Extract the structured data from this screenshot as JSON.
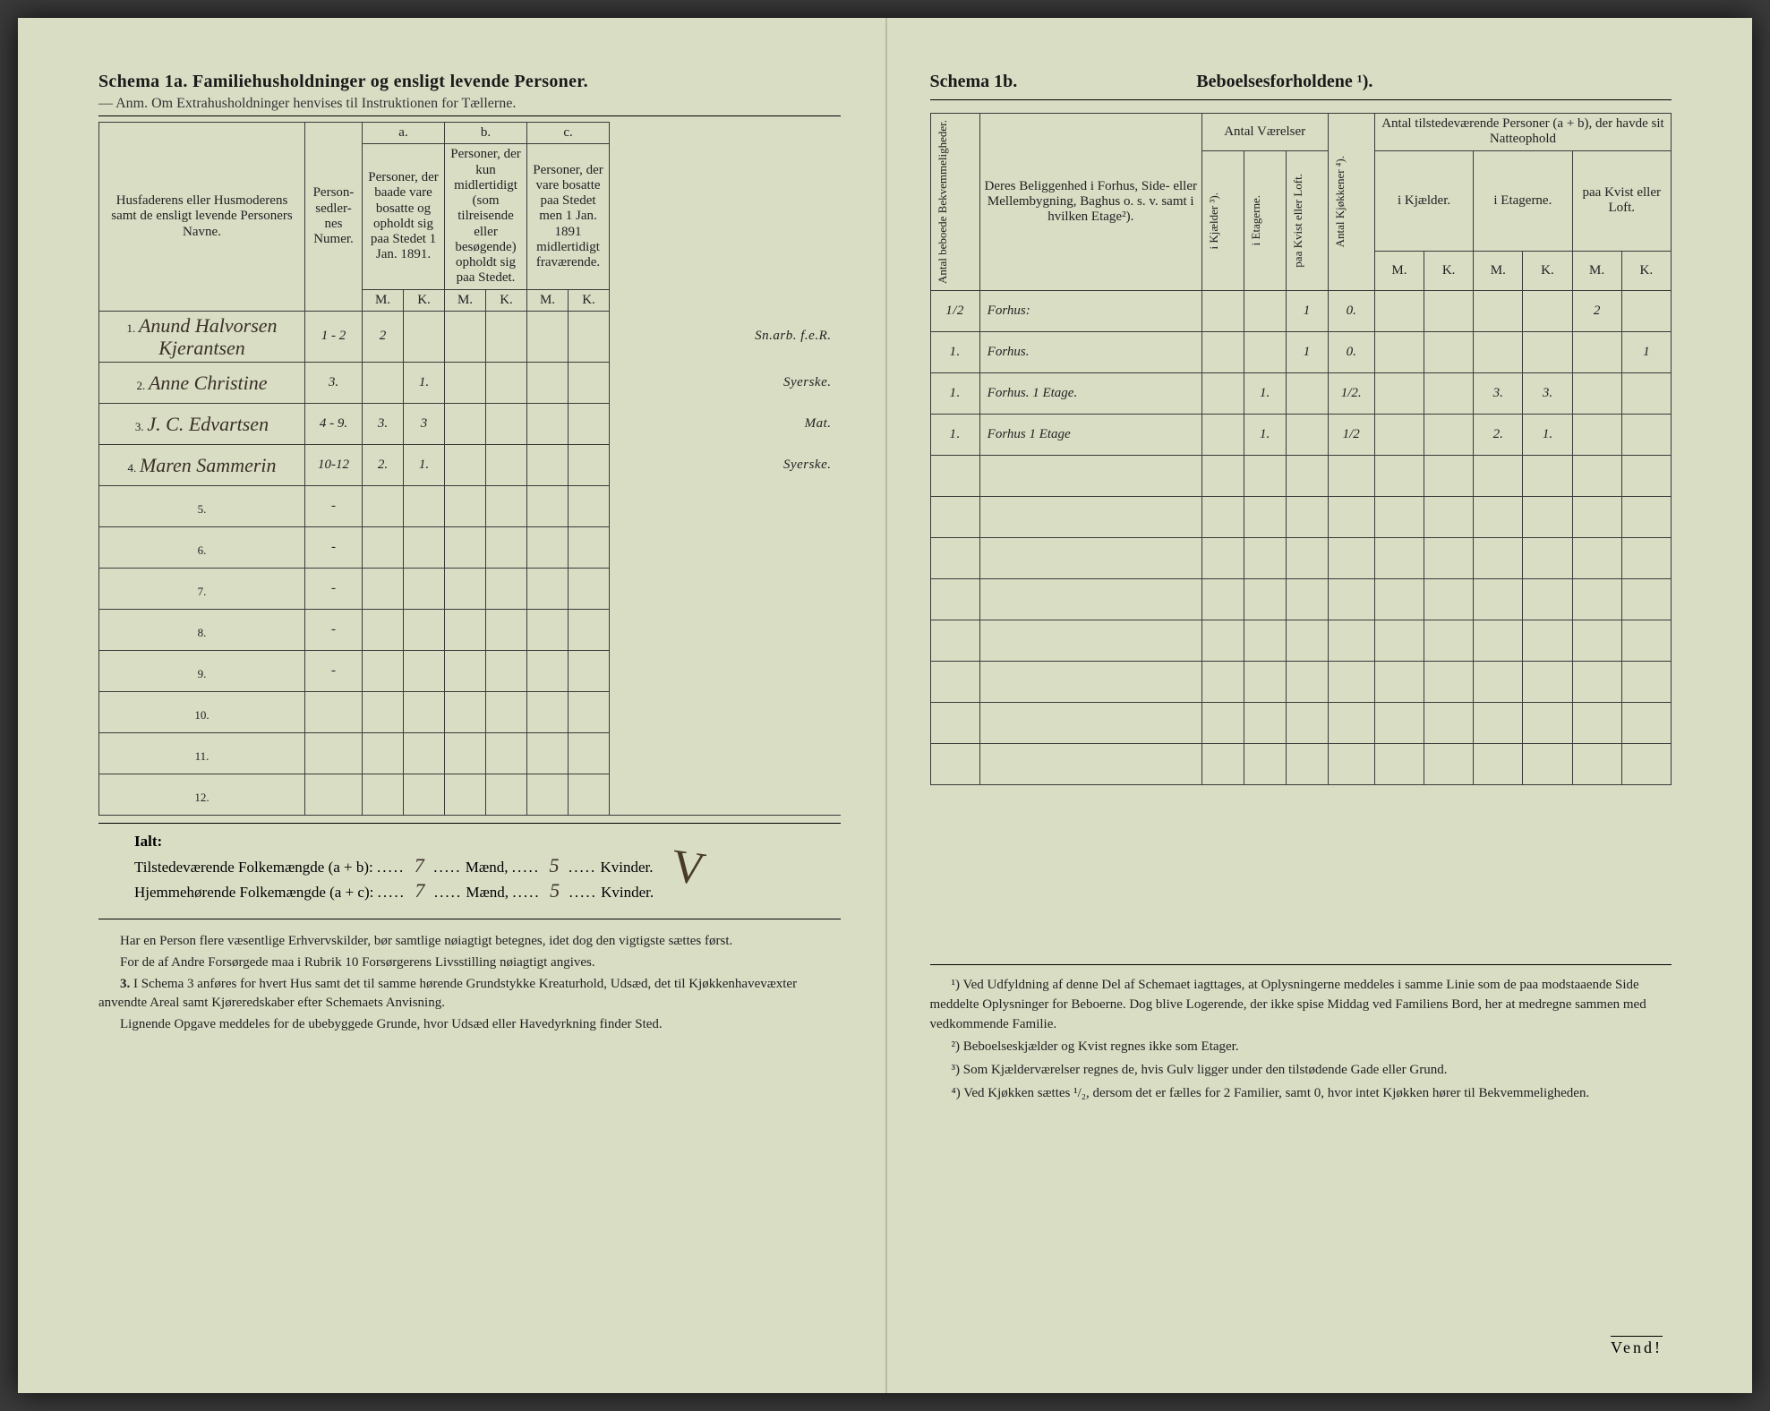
{
  "left": {
    "schema_title": "Schema 1a.  Familiehusholdninger og ensligt levende Personer.",
    "anm": "Anm. Om Extrahusholdninger henvises til Instruktionen for Tællerne.",
    "headers": {
      "name": "Husfaderens eller Husmoderens samt de ensligt levende Personers Navne.",
      "numer": "Person-sedler-nes Numer.",
      "a_label": "a.",
      "a_text": "Personer, der baade vare bosatte og opholdt sig paa Stedet 1 Jan. 1891.",
      "b_label": "b.",
      "b_text": "Personer, der kun midlertidigt (som tilreisende eller besøgende) opholdt sig paa Stedet.",
      "c_label": "c.",
      "c_text": "Personer, der vare bosatte paa Stedet men 1 Jan. 1891 midlertidigt fraværende.",
      "M": "M.",
      "K": "K."
    },
    "rows": [
      {
        "n": "1.",
        "name": "Anund Halvorsen Kjerantsen",
        "num": "1 - 2",
        "aM": "2",
        "aK": "",
        "bM": "",
        "bK": "",
        "cM": "",
        "cK": "",
        "occ": "Sn.arb. f.e.R."
      },
      {
        "n": "2.",
        "name": "Anne Christine",
        "num": "3.",
        "aM": "",
        "aK": "1.",
        "bM": "",
        "bK": "",
        "cM": "",
        "cK": "",
        "occ": "Syerske."
      },
      {
        "n": "3.",
        "name": "J. C. Edvartsen",
        "num": "4 - 9.",
        "aM": "3.",
        "aK": "3",
        "bM": "",
        "bK": "",
        "cM": "",
        "cK": "",
        "occ": "Mat."
      },
      {
        "n": "4.",
        "name": "Maren Sammerin",
        "num": "10-12",
        "aM": "2.",
        "aK": "1.",
        "bM": "",
        "bK": "",
        "cM": "",
        "cK": "",
        "occ": "Syerske."
      },
      {
        "n": "5.",
        "name": "",
        "num": "-",
        "aM": "",
        "aK": "",
        "bM": "",
        "bK": "",
        "cM": "",
        "cK": "",
        "occ": ""
      },
      {
        "n": "6.",
        "name": "",
        "num": "-",
        "aM": "",
        "aK": "",
        "bM": "",
        "bK": "",
        "cM": "",
        "cK": "",
        "occ": ""
      },
      {
        "n": "7.",
        "name": "",
        "num": "-",
        "aM": "",
        "aK": "",
        "bM": "",
        "bK": "",
        "cM": "",
        "cK": "",
        "occ": ""
      },
      {
        "n": "8.",
        "name": "",
        "num": "-",
        "aM": "",
        "aK": "",
        "bM": "",
        "bK": "",
        "cM": "",
        "cK": "",
        "occ": ""
      },
      {
        "n": "9.",
        "name": "",
        "num": "-",
        "aM": "",
        "aK": "",
        "bM": "",
        "bK": "",
        "cM": "",
        "cK": "",
        "occ": ""
      },
      {
        "n": "10.",
        "name": "",
        "num": "",
        "aM": "",
        "aK": "",
        "bM": "",
        "bK": "",
        "cM": "",
        "cK": "",
        "occ": ""
      },
      {
        "n": "11.",
        "name": "",
        "num": "",
        "aM": "",
        "aK": "",
        "bM": "",
        "bK": "",
        "cM": "",
        "cK": "",
        "occ": ""
      },
      {
        "n": "12.",
        "name": "",
        "num": "",
        "aM": "",
        "aK": "",
        "bM": "",
        "bK": "",
        "cM": "",
        "cK": "",
        "occ": ""
      }
    ],
    "summary": {
      "ialt": "Ialt:",
      "line1a": "Tilstedeværende Folkemængde (a + b): ",
      "line1_m": "7",
      "line1_mid": " Mænd, ",
      "line1_k": "5",
      "line1_end": " Kvinder.",
      "line2a": "Hjemmehørende Folkemængde (a + c): ",
      "line2_m": "7",
      "line2_k": "5"
    },
    "instructions": {
      "p1": "Har en Person flere væsentlige Erhvervskilder, bør samtlige nøiagtigt betegnes, idet dog den vigtigste sættes først.",
      "p2": "For de af Andre Forsørgede maa i Rubrik 10 Forsørgerens Livsstilling nøiagtigt angives.",
      "p3_num": "3.",
      "p3": "I Schema 3 anføres for hvert Hus samt det til samme hørende Grundstykke Kreaturhold, Udsæd, det til Kjøkkenhavevæxter anvendte Areal samt Kjøreredskaber efter Schemaets Anvisning.",
      "p4": "Lignende Opgave meddeles for de ubebyggede Grunde, hvor Udsæd eller Havedyrkning finder Sted."
    }
  },
  "right": {
    "schema_a": "Schema 1b.",
    "schema_b": "Beboelsesforholdene ¹).",
    "headers": {
      "antal_bek": "Antal beboede Bekvemmeligheder.",
      "belig": "Deres Beliggenhed i Forhus, Side- eller Mellembygning, Baghus o. s. v. samt i hvilken Etage²).",
      "antal_vaer": "Antal Værelser",
      "ik": "i Kjælder ³).",
      "ie": "i Etagerne.",
      "pk": "paa Kvist eller Loft.",
      "kjok": "Antal Kjøkkener ⁴).",
      "tilst": "Antal tilstedeværende Personer (a + b), der havde sit Natteophold",
      "ikj": "i Kjælder.",
      "iet": "i Etagerne.",
      "paakv": "paa Kvist eller Loft.",
      "M": "M.",
      "K": "K."
    },
    "rows": [
      {
        "bek": "1/2",
        "belig": "Forhus:",
        "ik": "",
        "ie": "",
        "pk": "1",
        "kj": "0.",
        "kjM": "",
        "kjK": "",
        "etM": "",
        "etK": "",
        "kvM": "2",
        "kvK": ""
      },
      {
        "bek": "1.",
        "belig": "Forhus.",
        "ik": "",
        "ie": "",
        "pk": "1",
        "kj": "0.",
        "kjM": "",
        "kjK": "",
        "etM": "",
        "etK": "",
        "kvM": "",
        "kvK": "1"
      },
      {
        "bek": "1.",
        "belig": "Forhus. 1 Etage.",
        "ik": "",
        "ie": "1.",
        "pk": "",
        "kj": "1/2.",
        "kjM": "",
        "kjK": "",
        "etM": "3.",
        "etK": "3.",
        "kvM": "",
        "kvK": ""
      },
      {
        "bek": "1.",
        "belig": "Forhus 1 Etage",
        "ik": "",
        "ie": "1.",
        "pk": "",
        "kj": "1/2",
        "kjM": "",
        "kjK": "",
        "etM": "2.",
        "etK": "1.",
        "kvM": "",
        "kvK": ""
      },
      {
        "bek": "",
        "belig": "",
        "ik": "",
        "ie": "",
        "pk": "",
        "kj": "",
        "kjM": "",
        "kjK": "",
        "etM": "",
        "etK": "",
        "kvM": "",
        "kvK": ""
      },
      {
        "bek": "",
        "belig": "",
        "ik": "",
        "ie": "",
        "pk": "",
        "kj": "",
        "kjM": "",
        "kjK": "",
        "etM": "",
        "etK": "",
        "kvM": "",
        "kvK": ""
      },
      {
        "bek": "",
        "belig": "",
        "ik": "",
        "ie": "",
        "pk": "",
        "kj": "",
        "kjM": "",
        "kjK": "",
        "etM": "",
        "etK": "",
        "kvM": "",
        "kvK": ""
      },
      {
        "bek": "",
        "belig": "",
        "ik": "",
        "ie": "",
        "pk": "",
        "kj": "",
        "kjM": "",
        "kjK": "",
        "etM": "",
        "etK": "",
        "kvM": "",
        "kvK": ""
      },
      {
        "bek": "",
        "belig": "",
        "ik": "",
        "ie": "",
        "pk": "",
        "kj": "",
        "kjM": "",
        "kjK": "",
        "etM": "",
        "etK": "",
        "kvM": "",
        "kvK": ""
      },
      {
        "bek": "",
        "belig": "",
        "ik": "",
        "ie": "",
        "pk": "",
        "kj": "",
        "kjM": "",
        "kjK": "",
        "etM": "",
        "etK": "",
        "kvM": "",
        "kvK": ""
      },
      {
        "bek": "",
        "belig": "",
        "ik": "",
        "ie": "",
        "pk": "",
        "kj": "",
        "kjM": "",
        "kjK": "",
        "etM": "",
        "etK": "",
        "kvM": "",
        "kvK": ""
      },
      {
        "bek": "",
        "belig": "",
        "ik": "",
        "ie": "",
        "pk": "",
        "kj": "",
        "kjM": "",
        "kjK": "",
        "etM": "",
        "etK": "",
        "kvM": "",
        "kvK": ""
      }
    ],
    "footnotes": {
      "f1": "¹) Ved Udfyldning af denne Del af Schemaet iagttages, at Oplysningerne meddeles i samme Linie som de paa modstaaende Side meddelte Oplysninger for Beboerne. Dog blive Logerende, der ikke spise Middag ved Familiens Bord, her at medregne sammen med vedkommende Familie.",
      "f2": "²) Beboelseskjælder og Kvist regnes ikke som Etager.",
      "f3": "³) Som Kjælderværelser regnes de, hvis Gulv ligger under den tilstødende Gade eller Grund.",
      "f4": "⁴) Ved Kjøkken sættes ¹/₂, dersom det er fælles for 2 Familier, samt 0, hvor intet Kjøkken hører til Bekvemmeligheden."
    },
    "vend": "Vend!"
  }
}
